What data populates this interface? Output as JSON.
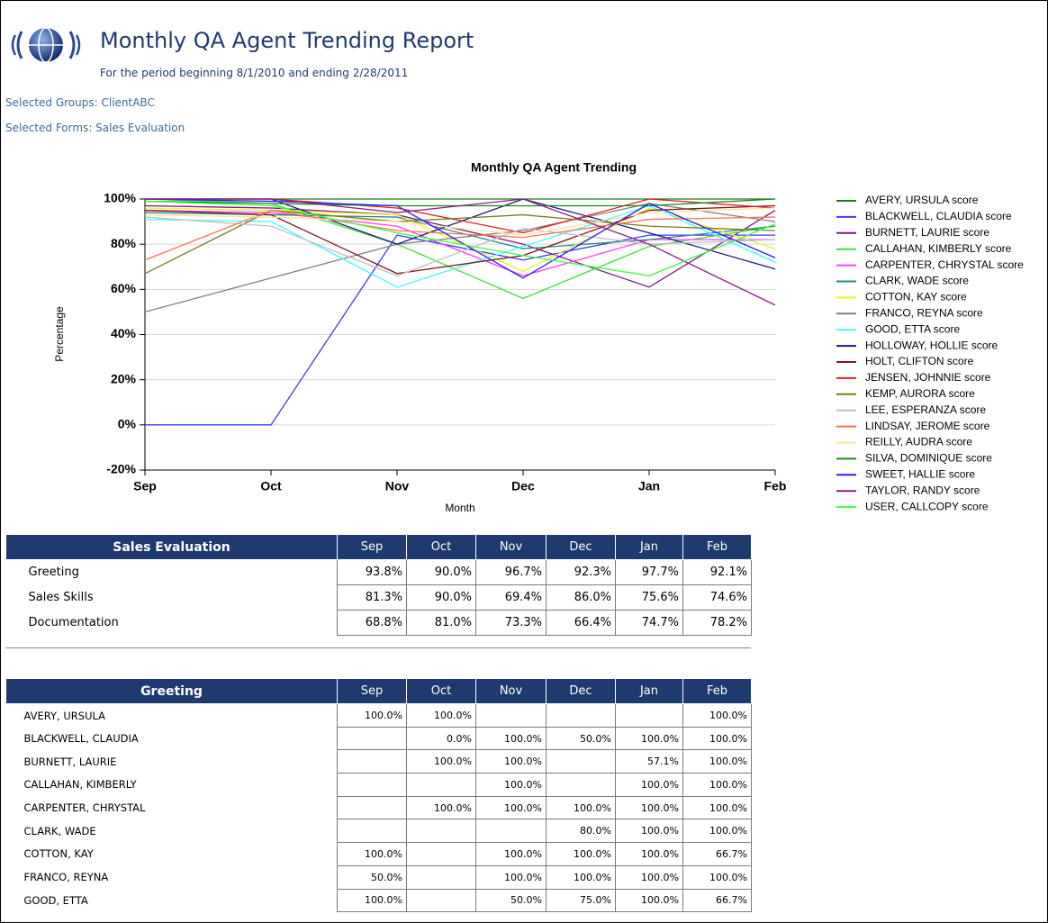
{
  "header": {
    "title": "Monthly QA Agent Trending Report",
    "subtitle": "For the period beginning 8/1/2010 and ending 2/28/2011",
    "groups": "Selected Groups: ClientABC",
    "forms": "Selected Forms: Sales Evaluation"
  },
  "chart_data": {
    "type": "line",
    "title": "Monthly QA Agent Trending",
    "x_label": "Month",
    "y_label": "Percentage",
    "categories": [
      "Sep",
      "Oct",
      "Nov",
      "Dec",
      "Jan",
      "Feb"
    ],
    "ylim": [
      -20,
      100
    ],
    "yticks": [
      {
        "value": -20,
        "label": "-20%"
      },
      {
        "value": 0,
        "label": "0%"
      },
      {
        "value": 20,
        "label": "20%"
      },
      {
        "value": 40,
        "label": "40%"
      },
      {
        "value": 60,
        "label": "60%"
      },
      {
        "value": 80,
        "label": "80%"
      },
      {
        "value": 100,
        "label": "100%"
      }
    ],
    "grid": true,
    "series": [
      {
        "name": "AVERY, URSULA score",
        "color": "#1e7b1e",
        "values": [
          100,
          100,
          100,
          100,
          100,
          100
        ]
      },
      {
        "name": "BLACKWELL, CLAUDIA score",
        "color": "#3c3cf0",
        "values": [
          0,
          0,
          84,
          73,
          84,
          84
        ]
      },
      {
        "name": "BURNETT, LAURIE score",
        "color": "#7b1a7b",
        "values": [
          97,
          96,
          93,
          80,
          61,
          95
        ]
      },
      {
        "name": "CALLAHAN, KIMBERLY score",
        "color": "#40e040",
        "values": [
          100,
          98,
          80,
          56,
          79,
          88
        ]
      },
      {
        "name": "CARPENTER, CHRYSTAL score",
        "color": "#ff40ff",
        "values": [
          95,
          94,
          88,
          66,
          82,
          82
        ]
      },
      {
        "name": "CLARK, WADE score",
        "color": "#2a8a8a",
        "values": [
          94,
          93,
          92,
          78,
          82,
          88
        ]
      },
      {
        "name": "COTTON, KAY score",
        "color": "#f0f020",
        "values": [
          96,
          95,
          93,
          68,
          96,
          78
        ]
      },
      {
        "name": "FRANCO, REYNA score",
        "color": "#808080",
        "values": [
          50,
          65,
          80,
          86,
          98,
          90
        ]
      },
      {
        "name": "GOOD, ETTA score",
        "color": "#40ffff",
        "values": [
          91,
          90,
          61,
          79,
          97,
          72
        ]
      },
      {
        "name": "HOLLOWAY, HOLLIE score",
        "color": "#1a1a7b",
        "values": [
          100,
          100,
          80,
          100,
          85,
          69
        ]
      },
      {
        "name": "HOLT, CLIFTON score",
        "color": "#7b1a1a",
        "values": [
          95,
          93,
          67,
          75,
          95,
          97
        ]
      },
      {
        "name": "JENSEN, JOHNNIE score",
        "color": "#e02020",
        "values": [
          100,
          100,
          96,
          85,
          100,
          96
        ]
      },
      {
        "name": "KEMP, AURORA score",
        "color": "#7b7b1a",
        "values": [
          67,
          95,
          90,
          93,
          88,
          86
        ]
      },
      {
        "name": "LEE, ESPERANZA score",
        "color": "#c0c0c0",
        "values": [
          92,
          88,
          66,
          87,
          80,
          82
        ]
      },
      {
        "name": "LINDSAY, JEROME score",
        "color": "#ff7050",
        "values": [
          73,
          95,
          86,
          83,
          91,
          92
        ]
      },
      {
        "name": "REILLY, AUDRA score",
        "color": "#ffe0a0",
        "values": [
          93,
          92,
          90,
          84,
          94,
          96
        ]
      },
      {
        "name": "SILVA, DOMINIQUE score",
        "color": "#1a8a1a",
        "values": [
          99,
          98,
          97,
          97,
          97,
          100
        ]
      },
      {
        "name": "SWEET, HALLIE score",
        "color": "#2020ff",
        "values": [
          100,
          99,
          97,
          65,
          98,
          74
        ]
      },
      {
        "name": "TAYLOR, RANDY score",
        "color": "#8a208a",
        "values": [
          100,
          100,
          94,
          100,
          80,
          53
        ]
      },
      {
        "name": "USER, CALLCOPY score",
        "color": "#40ff40",
        "values": [
          99,
          97,
          85,
          75,
          66,
          89
        ]
      }
    ]
  },
  "tables": [
    {
      "columns": [
        "Sales Evaluation",
        "Sep",
        "Oct",
        "Nov",
        "Dec",
        "Jan",
        "Feb"
      ],
      "rows": [
        [
          "Greeting",
          "93.8%",
          "90.0%",
          "96.7%",
          "92.3%",
          "97.7%",
          "92.1%"
        ],
        [
          "Sales Skills",
          "81.3%",
          "90.0%",
          "69.4%",
          "86.0%",
          "75.6%",
          "74.6%"
        ],
        [
          "Documentation",
          "68.8%",
          "81.0%",
          "73.3%",
          "66.4%",
          "74.7%",
          "78.2%"
        ]
      ]
    },
    {
      "columns": [
        "Greeting",
        "Sep",
        "Oct",
        "Nov",
        "Dec",
        "Jan",
        "Feb"
      ],
      "rows": [
        [
          "AVERY, URSULA",
          "100.0%",
          "100.0%",
          null,
          null,
          null,
          "100.0%"
        ],
        [
          "BLACKWELL, CLAUDIA",
          null,
          "0.0%",
          "100.0%",
          "50.0%",
          "100.0%",
          "100.0%"
        ],
        [
          "BURNETT, LAURIE",
          null,
          "100.0%",
          "100.0%",
          null,
          "57.1%",
          "100.0%"
        ],
        [
          "CALLAHAN, KIMBERLY",
          null,
          null,
          "100.0%",
          null,
          "100.0%",
          "100.0%"
        ],
        [
          "CARPENTER, CHRYSTAL",
          null,
          "100.0%",
          "100.0%",
          "100.0%",
          "100.0%",
          "100.0%"
        ],
        [
          "CLARK, WADE",
          null,
          null,
          null,
          "80.0%",
          "100.0%",
          "100.0%"
        ],
        [
          "COTTON, KAY",
          "100.0%",
          null,
          "100.0%",
          "100.0%",
          "100.0%",
          "66.7%"
        ],
        [
          "FRANCO, REYNA",
          "50.0%",
          null,
          "100.0%",
          "100.0%",
          "100.0%",
          "100.0%"
        ],
        [
          "GOOD, ETTA",
          "100.0%",
          null,
          "50.0%",
          "75.0%",
          "100.0%",
          "66.7%"
        ]
      ]
    }
  ]
}
